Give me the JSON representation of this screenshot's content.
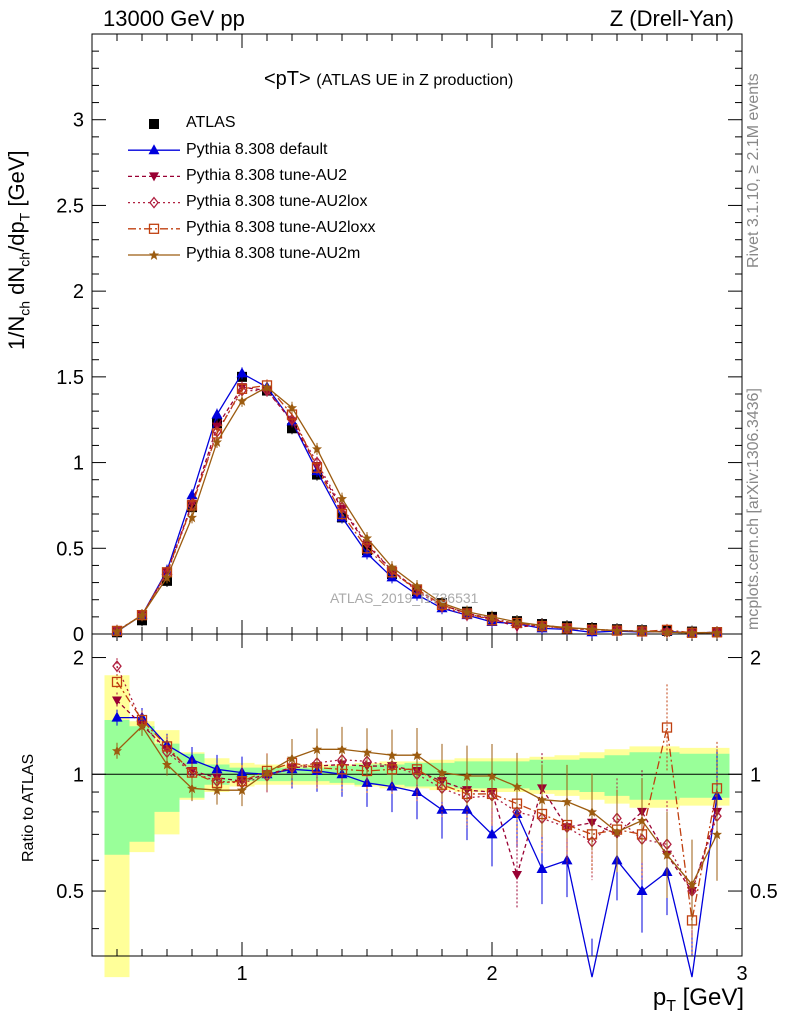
{
  "header": {
    "left": "13000 GeV pp",
    "right": "Z (Drell-Yan)"
  },
  "plot_title": {
    "main": "<pT>",
    "sub": "(ATLAS UE in Z production)"
  },
  "side_text": {
    "rivet": "Rivet 3.1.10, ≥ 2.1M events",
    "mcplots": "mcplots.cern.ch [arXiv:1306.3436]"
  },
  "watermark": "ATLAS_2019_I1736531",
  "axes": {
    "top_ylabel": "1/N_ch dN_ch/dp_T [GeV]",
    "bottom_ylabel": "Ratio to ATLAS",
    "xlabel": "p_T [GeV]"
  },
  "legend": [
    {
      "label": "ATLAS"
    },
    {
      "label": "Pythia 8.308 default"
    },
    {
      "label": "Pythia 8.308 tune-AU2"
    },
    {
      "label": "Pythia 8.308 tune-AU2lox"
    },
    {
      "label": "Pythia 8.308 tune-AU2loxx"
    },
    {
      "label": "Pythia 8.308 tune-AU2m"
    }
  ],
  "colors": {
    "atlas": "#000000",
    "default": "#0000dd",
    "au2": "#990033",
    "au2lox": "#b02040",
    "au2loxx": "#c04010",
    "au2m": "#9c5c10",
    "band_yellow": "#ffff99",
    "band_green": "#99ff99"
  },
  "chart_data": [
    {
      "type": "scatter",
      "panel": "main",
      "xlabel": "p_T [GeV]",
      "ylabel": "1/N_ch dN_ch/dp_T [GeV]",
      "xlim": [
        0.4,
        3.0
      ],
      "ylim": [
        0,
        3.5
      ],
      "x_ticks": [
        "1",
        "2",
        "3"
      ],
      "y_ticks": [
        "0",
        "0.5",
        "1",
        "1.5",
        "2",
        "2.5",
        "3"
      ],
      "x": [
        0.5,
        0.6,
        0.7,
        0.8,
        0.9,
        1.0,
        1.1,
        1.2,
        1.3,
        1.4,
        1.5,
        1.6,
        1.7,
        1.8,
        1.9,
        2.0,
        2.1,
        2.2,
        2.3,
        2.4,
        2.5,
        2.6,
        2.7,
        2.8,
        2.9
      ],
      "series": [
        {
          "name": "ATLAS",
          "values": [
            0.01,
            0.08,
            0.31,
            0.74,
            1.23,
            1.5,
            1.42,
            1.2,
            0.93,
            0.68,
            0.49,
            0.35,
            0.25,
            0.18,
            0.13,
            0.1,
            0.075,
            0.058,
            0.045,
            0.035,
            0.028,
            0.022,
            0.018,
            0.014,
            0.011
          ]
        },
        {
          "name": "Pythia 8.308 default",
          "values": [
            0.014,
            0.11,
            0.37,
            0.81,
            1.28,
            1.52,
            1.44,
            1.24,
            0.95,
            0.68,
            0.47,
            0.33,
            0.23,
            0.15,
            0.11,
            0.07,
            0.06,
            0.033,
            0.027,
            0.01,
            0.017,
            0.011,
            0.016,
            0.006,
            0.01
          ]
        },
        {
          "name": "Pythia 8.308 tune-AU2",
          "values": [
            0.016,
            0.11,
            0.36,
            0.76,
            1.21,
            1.44,
            1.42,
            1.24,
            0.98,
            0.73,
            0.52,
            0.37,
            0.26,
            0.17,
            0.12,
            0.09,
            0.04,
            0.053,
            0.033,
            0.026,
            0.02,
            0.017,
            0.011,
            0.007,
            0.009
          ]
        },
        {
          "name": "Pythia 8.308 tune-AU2lox",
          "values": [
            0.019,
            0.11,
            0.35,
            0.75,
            1.18,
            1.42,
            1.42,
            1.25,
            1.0,
            0.74,
            0.53,
            0.37,
            0.25,
            0.16,
            0.11,
            0.09,
            0.06,
            0.045,
            0.033,
            0.026,
            0.022,
            0.015,
            0.012,
            0.007,
            0.009
          ]
        },
        {
          "name": "Pythia 8.308 tune-AU2loxx",
          "values": [
            0.018,
            0.11,
            0.36,
            0.75,
            1.17,
            1.43,
            1.45,
            1.28,
            0.97,
            0.7,
            0.5,
            0.36,
            0.26,
            0.17,
            0.12,
            0.08,
            0.064,
            0.046,
            0.033,
            0.025,
            0.02,
            0.015,
            0.024,
            0.007,
            0.01
          ]
        },
        {
          "name": "Pythia 8.308 tune-AU2m",
          "values": [
            0.016,
            0.11,
            0.33,
            0.68,
            1.12,
            1.36,
            1.44,
            1.32,
            1.08,
            0.79,
            0.56,
            0.39,
            0.28,
            0.18,
            0.13,
            0.1,
            0.07,
            0.05,
            0.038,
            0.028,
            0.02,
            0.016,
            0.01,
            0.007,
            0.008
          ]
        }
      ]
    },
    {
      "type": "scatter",
      "panel": "ratio",
      "xlabel": "p_T [GeV]",
      "ylabel": "Ratio to ATLAS",
      "xlim": [
        0.4,
        3.0
      ],
      "ylim": [
        0.34,
        2.3
      ],
      "x_ticks": [
        "1",
        "2",
        "3"
      ],
      "y_ticks": [
        "0.5",
        "1",
        "2"
      ],
      "x": [
        0.5,
        0.6,
        0.7,
        0.8,
        0.9,
        1.0,
        1.1,
        1.2,
        1.3,
        1.4,
        1.5,
        1.6,
        1.7,
        1.8,
        1.9,
        2.0,
        2.1,
        2.2,
        2.3,
        2.4,
        2.5,
        2.6,
        2.7,
        2.8,
        2.9
      ],
      "series": [
        {
          "name": "Pythia 8.308 default",
          "values": [
            1.4,
            1.4,
            1.19,
            1.09,
            1.03,
            1.01,
            1.0,
            1.03,
            1.02,
            1.0,
            0.95,
            0.93,
            0.9,
            0.81,
            0.81,
            0.7,
            0.79,
            0.57,
            0.6,
            0.28,
            0.6,
            0.5,
            0.56,
            0.25,
            0.88
          ]
        },
        {
          "name": "Pythia 8.308 tune-AU2",
          "values": [
            1.55,
            1.34,
            1.16,
            1.02,
            0.98,
            0.96,
            1.0,
            1.04,
            1.05,
            1.06,
            1.05,
            1.05,
            1.02,
            0.96,
            0.91,
            0.9,
            0.55,
            0.92,
            0.73,
            0.75,
            0.7,
            0.8,
            0.62,
            0.5,
            0.8
          ]
        },
        {
          "name": "Pythia 8.308 tune-AU2lox",
          "values": [
            1.9,
            1.36,
            1.14,
            1.01,
            0.96,
            0.95,
            0.99,
            1.04,
            1.07,
            1.09,
            1.08,
            1.05,
            1.0,
            0.92,
            0.87,
            0.88,
            0.8,
            0.77,
            0.73,
            0.67,
            0.77,
            0.68,
            0.66,
            0.5,
            0.78
          ]
        },
        {
          "name": "Pythia 8.308 tune-AU2loxx",
          "values": [
            1.73,
            1.38,
            1.18,
            1.01,
            0.95,
            0.96,
            1.02,
            1.07,
            1.04,
            1.03,
            1.02,
            1.03,
            1.03,
            0.94,
            0.89,
            0.89,
            0.84,
            0.79,
            0.74,
            0.7,
            0.72,
            0.7,
            1.32,
            0.42,
            0.92
          ]
        },
        {
          "name": "Pythia 8.308 tune-AU2m",
          "values": [
            1.15,
            1.33,
            1.06,
            0.92,
            0.91,
            0.91,
            1.01,
            1.1,
            1.16,
            1.16,
            1.14,
            1.12,
            1.12,
            1.01,
            0.99,
            0.99,
            0.93,
            0.86,
            0.85,
            0.8,
            0.71,
            0.76,
            0.62,
            0.52,
            0.7
          ]
        }
      ],
      "bands": {
        "green_half_width": [
          0.38,
          0.33,
          0.2,
          0.13,
          0.06,
          0.04,
          0.04,
          0.04,
          0.04,
          0.05,
          0.06,
          0.06,
          0.07,
          0.07,
          0.08,
          0.08,
          0.08,
          0.09,
          0.09,
          0.1,
          0.12,
          0.14,
          0.14,
          0.13,
          0.13
        ],
        "yellow_half_width": [
          0.8,
          0.37,
          0.3,
          0.14,
          0.1,
          0.07,
          0.06,
          0.06,
          0.06,
          0.06,
          0.07,
          0.08,
          0.08,
          0.09,
          0.1,
          0.1,
          0.1,
          0.11,
          0.12,
          0.14,
          0.16,
          0.18,
          0.18,
          0.17,
          0.17
        ]
      }
    }
  ]
}
